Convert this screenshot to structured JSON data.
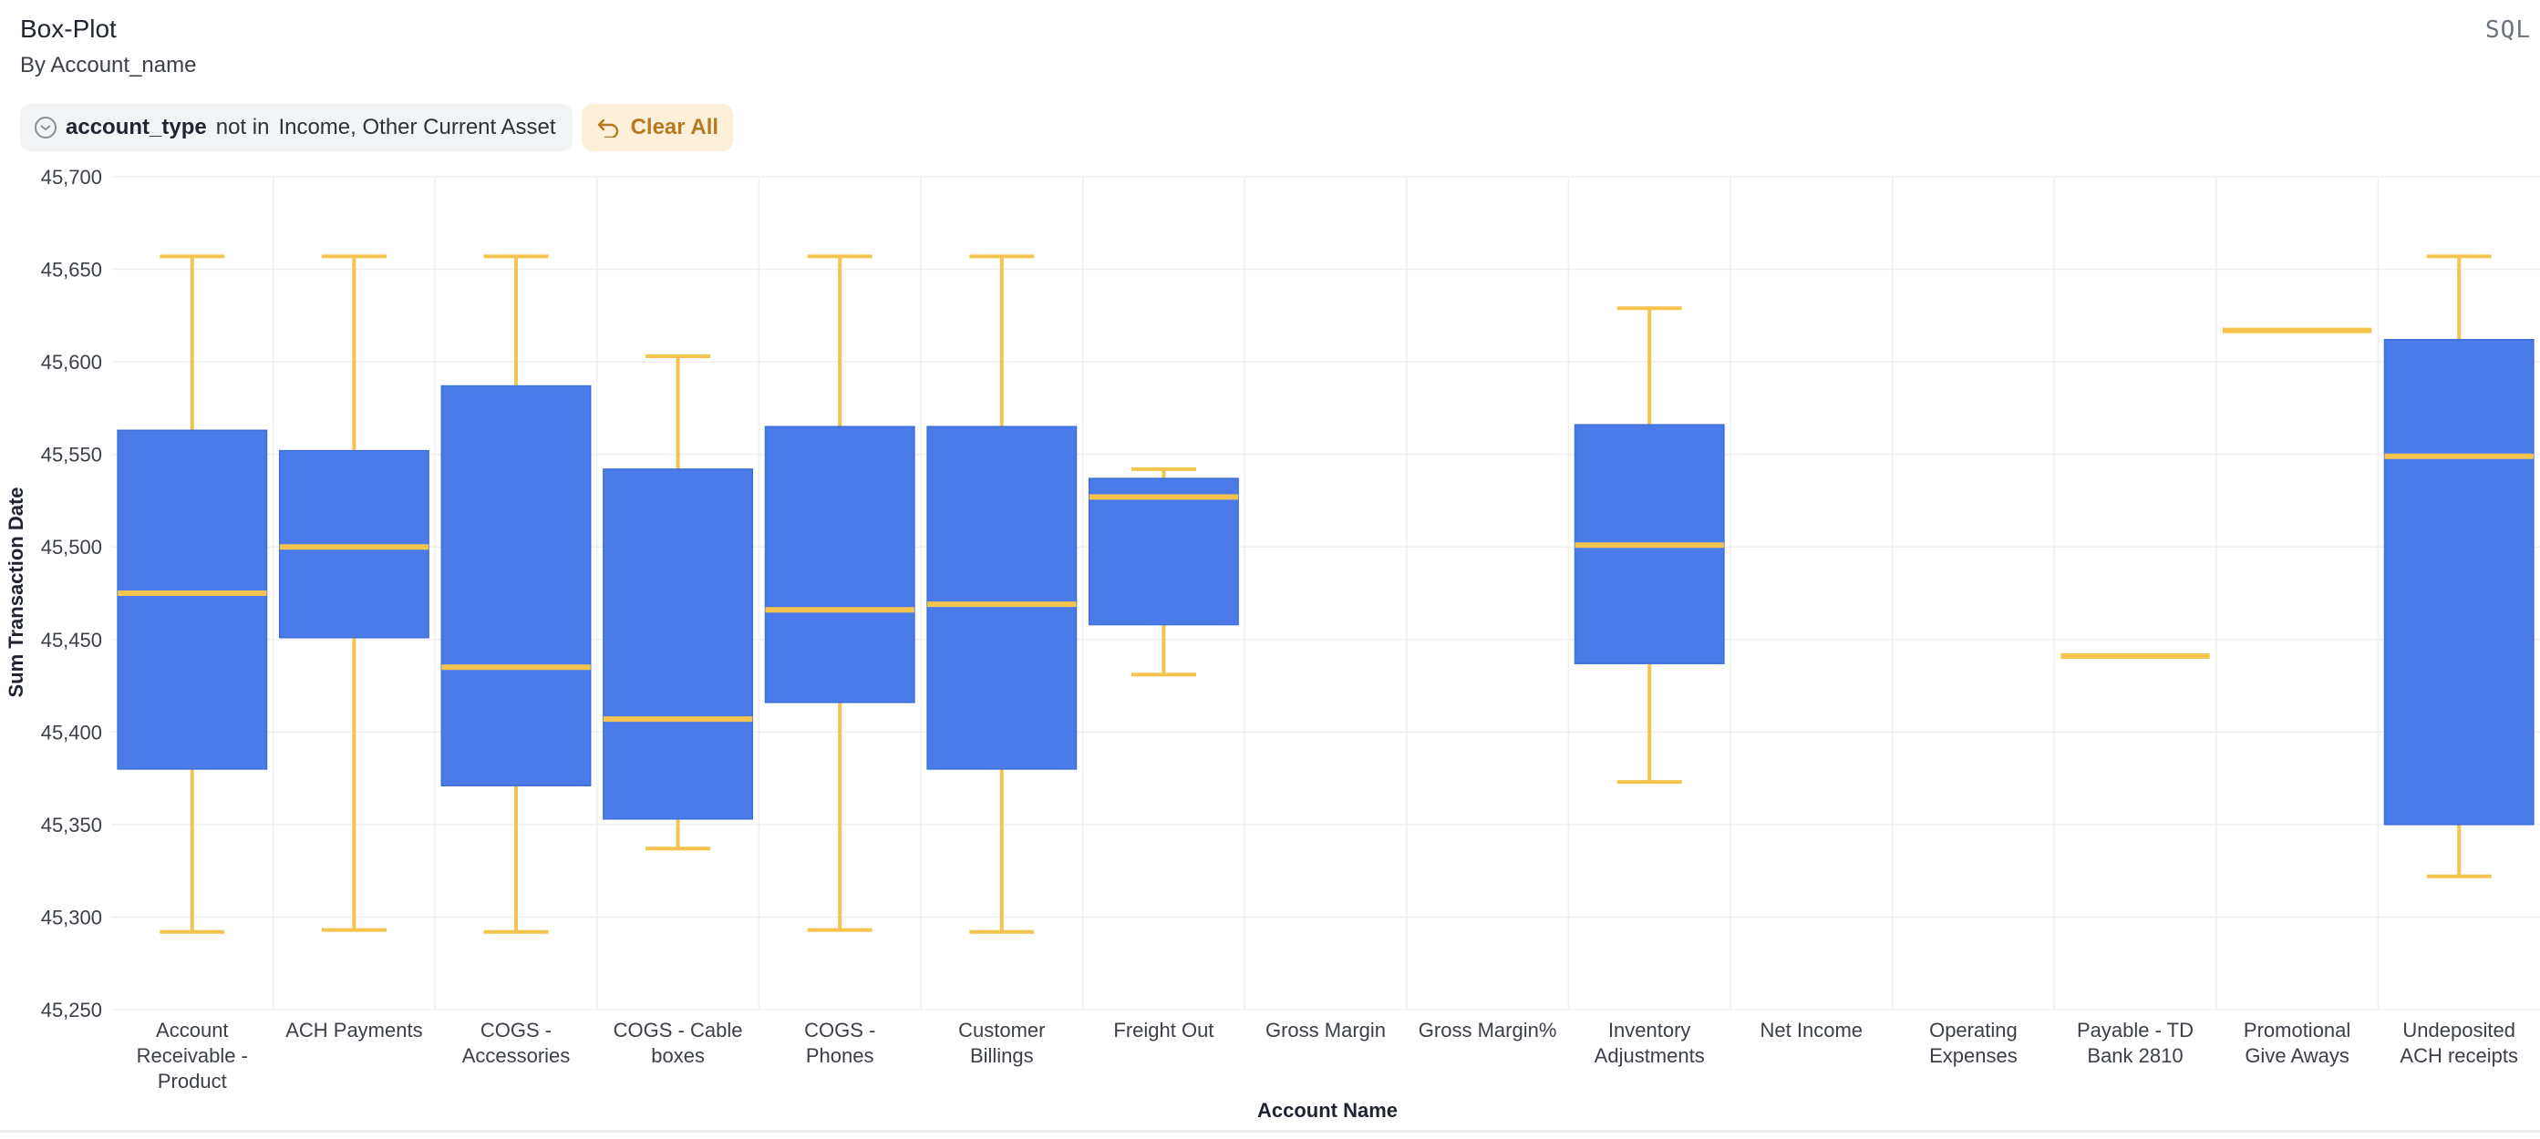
{
  "header": {
    "title": "Box-Plot",
    "subtitle": "By Account_name",
    "sql_label": "SQL"
  },
  "filters": {
    "chip": {
      "field": "account_type",
      "operator": "not in",
      "values": "Income, Other Current Asset"
    },
    "clear_label": "Clear All"
  },
  "colors": {
    "box": "#4a7be8",
    "whisker": "#f5c44e",
    "grid": "#eef0f3"
  },
  "chart_data": {
    "type": "box",
    "title": "",
    "xlabel": "Account Name",
    "ylabel": "Sum Transaction Date",
    "ylim": [
      45250,
      45700
    ],
    "yticks": [
      45250,
      45300,
      45350,
      45400,
      45450,
      45500,
      45550,
      45600,
      45650,
      45700
    ],
    "ytick_labels": [
      "45,250",
      "45,300",
      "45,350",
      "45,400",
      "45,450",
      "45,500",
      "45,550",
      "45,600",
      "45,650",
      "45,700"
    ],
    "grid": true,
    "categories": [
      {
        "lines": [
          "Account",
          "Receivable -",
          "Product"
        ],
        "min": 45292,
        "q1": 45380,
        "median": 45475,
        "q3": 45563,
        "max": 45657
      },
      {
        "lines": [
          "ACH Payments"
        ],
        "min": 45293,
        "q1": 45451,
        "median": 45500,
        "q3": 45552,
        "max": 45657
      },
      {
        "lines": [
          "COGS -",
          "Accessories"
        ],
        "min": 45292,
        "q1": 45371,
        "median": 45435,
        "q3": 45587,
        "max": 45657
      },
      {
        "lines": [
          "COGS - Cable",
          "boxes"
        ],
        "min": 45337,
        "q1": 45353,
        "median": 45407,
        "q3": 45542,
        "max": 45603
      },
      {
        "lines": [
          "COGS -",
          "Phones"
        ],
        "min": 45293,
        "q1": 45416,
        "median": 45466,
        "q3": 45565,
        "max": 45657
      },
      {
        "lines": [
          "Customer",
          "Billings"
        ],
        "min": 45292,
        "q1": 45380,
        "median": 45469,
        "q3": 45565,
        "max": 45657
      },
      {
        "lines": [
          "Freight Out"
        ],
        "min": 45431,
        "q1": 45458,
        "median": 45527,
        "q3": 45537,
        "max": 45542
      },
      {
        "lines": [
          "Gross Margin"
        ]
      },
      {
        "lines": [
          "Gross Margin%"
        ]
      },
      {
        "lines": [
          "Inventory",
          "Adjustments"
        ],
        "min": 45373,
        "q1": 45437,
        "median": 45501,
        "q3": 45566,
        "max": 45629
      },
      {
        "lines": [
          "Net Income"
        ]
      },
      {
        "lines": [
          "Operating",
          "Expenses"
        ]
      },
      {
        "lines": [
          "Payable - TD",
          "Bank 2810"
        ],
        "min": 45441,
        "q1": 45441,
        "median": 45441,
        "q3": 45441,
        "max": 45441
      },
      {
        "lines": [
          "Promotional",
          "Give Aways"
        ],
        "min": 45617,
        "q1": 45617,
        "median": 45617,
        "q3": 45617,
        "max": 45617
      },
      {
        "lines": [
          "Undeposited",
          "ACH receipts"
        ],
        "min": 45322,
        "q1": 45350,
        "median": 45549,
        "q3": 45612,
        "max": 45657
      }
    ]
  }
}
